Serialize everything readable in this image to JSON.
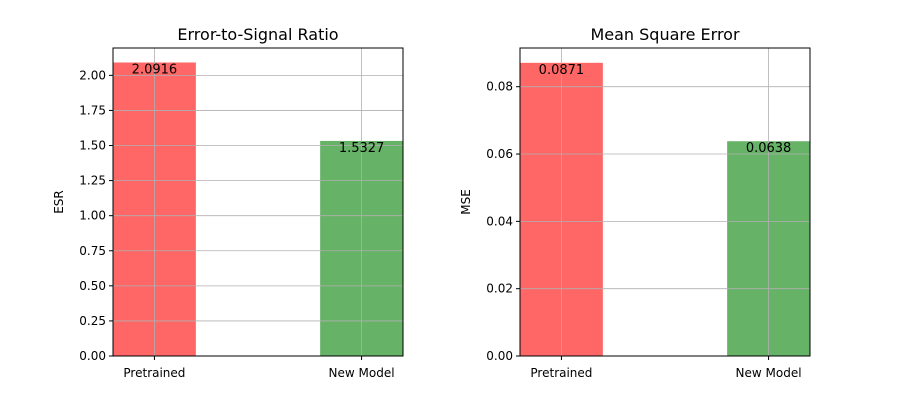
{
  "chart_data": [
    {
      "type": "bar",
      "title": "Error-to-Signal Ratio",
      "xlabel": "",
      "ylabel": "ESR",
      "categories": [
        "Pretrained",
        "New Model"
      ],
      "values": [
        2.0916,
        1.5327
      ],
      "value_labels": [
        "2.0916",
        "1.5327"
      ],
      "colors": [
        "#ff6666",
        "#66b266"
      ],
      "ylim": [
        0,
        2.195
      ],
      "yticks": [
        0.0,
        0.25,
        0.5,
        0.75,
        1.0,
        1.25,
        1.5,
        1.75,
        2.0
      ],
      "ytick_labels": [
        "0.00",
        "0.25",
        "0.50",
        "0.75",
        "1.00",
        "1.25",
        "1.50",
        "1.75",
        "2.00"
      ],
      "grid": true
    },
    {
      "type": "bar",
      "title": "Mean Square Error",
      "xlabel": "",
      "ylabel": "MSE",
      "categories": [
        "Pretrained",
        "New Model"
      ],
      "values": [
        0.0871,
        0.0638
      ],
      "value_labels": [
        "0.0871",
        "0.0638"
      ],
      "colors": [
        "#ff6666",
        "#66b266"
      ],
      "ylim": [
        0,
        0.0915
      ],
      "yticks": [
        0.0,
        0.02,
        0.04,
        0.06,
        0.08
      ],
      "ytick_labels": [
        "0.00",
        "0.02",
        "0.04",
        "0.06",
        "0.08"
      ],
      "grid": true
    }
  ]
}
